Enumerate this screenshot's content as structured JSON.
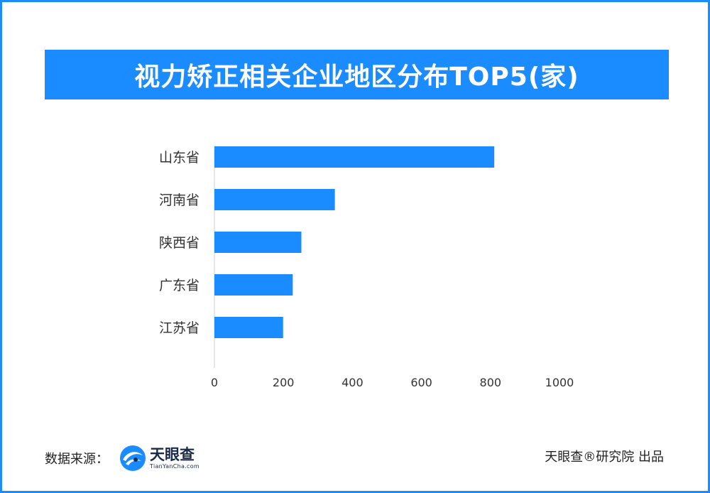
{
  "title": "视力矫正相关企业地区分布TOP5(家)",
  "chart_data": {
    "type": "bar",
    "orientation": "horizontal",
    "categories": [
      "山东省",
      "河南省",
      "陕西省",
      "广东省",
      "江苏省"
    ],
    "values": [
      811,
      349,
      252,
      227,
      199
    ],
    "xlim": [
      0,
      1000
    ],
    "xticks": [
      0,
      200,
      400,
      600,
      800,
      1000
    ],
    "grid": false,
    "bar_color": "#1a8cff"
  },
  "footer": {
    "source_label": "数据来源：",
    "logo_cn": "天眼查",
    "logo_en": "TianYanCha.com",
    "credit": "天眼查®研究院 出品"
  },
  "colors": {
    "accent": "#1a8cff",
    "axis": "#cccccc",
    "text": "#333333"
  }
}
